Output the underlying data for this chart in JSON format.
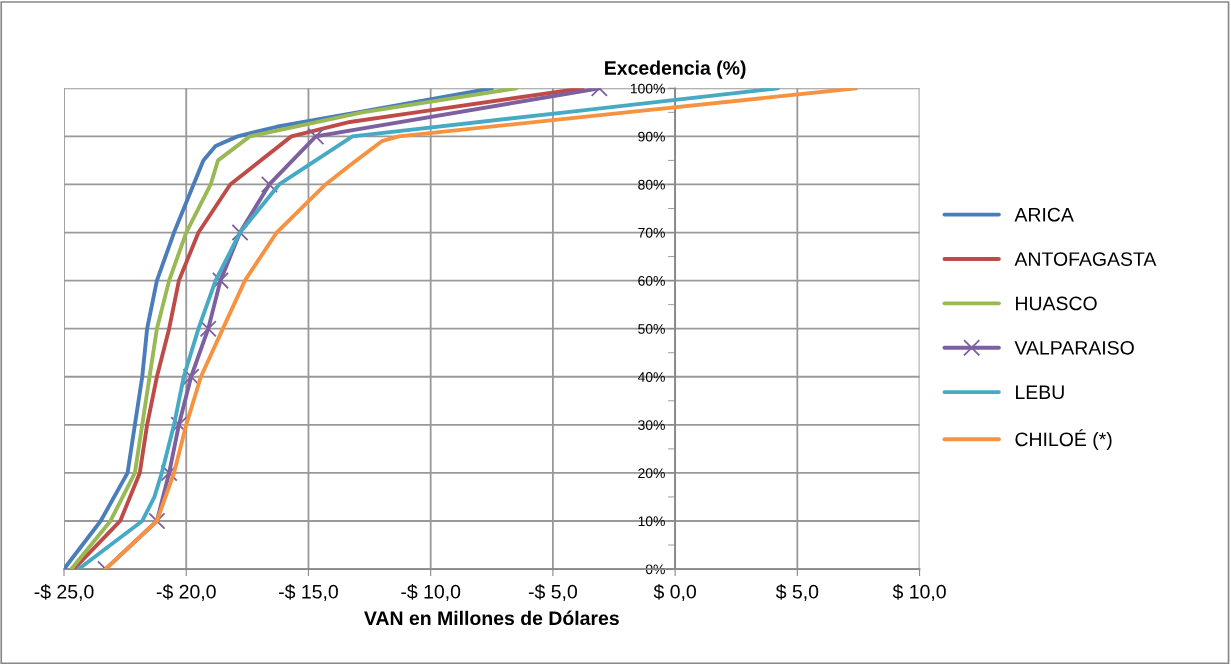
{
  "chart_data": {
    "type": "line",
    "ylabel": "Excedencia (%)",
    "xlabel": "VAN en Millones de Dólares",
    "xlim": [
      -25,
      10
    ],
    "ylim": [
      0,
      100
    ],
    "xticks": [
      {
        "value": -25,
        "label": "-$ 25,0"
      },
      {
        "value": -20,
        "label": "-$ 20,0"
      },
      {
        "value": -15,
        "label": "-$ 15,0"
      },
      {
        "value": -10,
        "label": "-$ 10,0"
      },
      {
        "value": -5,
        "label": "-$ 5,0"
      },
      {
        "value": 0,
        "label": "$ 0,0"
      },
      {
        "value": 5,
        "label": "$ 5,0"
      },
      {
        "value": 10,
        "label": "$ 10,0"
      }
    ],
    "yticks": [
      {
        "value": 0,
        "label": "0%"
      },
      {
        "value": 10,
        "label": "10%"
      },
      {
        "value": 20,
        "label": "20%"
      },
      {
        "value": 30,
        "label": "30%"
      },
      {
        "value": 40,
        "label": "40%"
      },
      {
        "value": 50,
        "label": "50%"
      },
      {
        "value": 60,
        "label": "60%"
      },
      {
        "value": 70,
        "label": "70%"
      },
      {
        "value": 80,
        "label": "80%"
      },
      {
        "value": 90,
        "label": "90%"
      },
      {
        "value": 100,
        "label": "100%"
      }
    ],
    "grid": true,
    "legend": "right",
    "marker": "none",
    "line_style": "solid",
    "series": [
      {
        "name": "ARICA",
        "color": "#4a7ebb",
        "x": [
          -25.0,
          -23.5,
          -22.4,
          -22.1,
          -21.8,
          -21.6,
          -21.2,
          -20.5,
          -19.7,
          -19.3,
          -18.8,
          -17.9,
          -16.3,
          -13.0,
          -7.5
        ],
        "values": [
          0,
          10,
          20,
          30,
          40,
          50,
          60,
          70,
          80,
          85,
          88,
          90,
          92,
          95,
          100
        ]
      },
      {
        "name": "ANTOFAGASTA",
        "color": "#be4b48",
        "x": [
          -24.6,
          -22.7,
          -21.9,
          -21.6,
          -21.2,
          -20.7,
          -20.3,
          -19.5,
          -18.2,
          -15.7,
          -13.3,
          -10.6,
          -3.8
        ],
        "values": [
          0,
          10,
          20,
          30,
          40,
          50,
          60,
          70,
          80,
          90,
          93,
          95,
          100
        ]
      },
      {
        "name": "HUASCO",
        "color": "#98b954",
        "x": [
          -24.7,
          -23.1,
          -22.1,
          -21.8,
          -21.5,
          -21.2,
          -20.7,
          -20.0,
          -19.0,
          -18.7,
          -17.4,
          -12.8,
          -6.5
        ],
        "values": [
          0,
          10,
          20,
          30,
          40,
          50,
          60,
          70,
          80,
          85,
          90,
          95,
          100
        ]
      },
      {
        "name": "VALPARAISO",
        "color": "#7d60a0",
        "marker": "cross",
        "x": [
          -23.3,
          -21.2,
          -20.7,
          -20.3,
          -19.8,
          -19.1,
          -18.6,
          -17.8,
          -16.6,
          -14.7,
          -3.1
        ],
        "values": [
          0,
          10,
          20,
          30,
          40,
          50,
          60,
          70,
          80,
          90,
          100
        ]
      },
      {
        "name": "LEBU",
        "color": "#46aac5",
        "x": [
          -24.4,
          -23.1,
          -21.8,
          -21.3,
          -21.0,
          -20.5,
          -20.1,
          -19.5,
          -18.8,
          -17.8,
          -16.2,
          -13.2,
          -4.5,
          4.2
        ],
        "values": [
          0,
          5,
          10,
          15,
          20,
          30,
          40,
          50,
          60,
          70,
          80,
          90,
          95,
          100
        ]
      },
      {
        "name": "CHILOÉ (*)",
        "color": "#f69240",
        "x": [
          -23.3,
          -21.2,
          -20.5,
          -20.0,
          -19.4,
          -18.5,
          -17.6,
          -16.3,
          -14.3,
          -13.3,
          -12.0,
          -11.3,
          -2.0,
          7.4
        ],
        "values": [
          0,
          10,
          20,
          30,
          40,
          50,
          60,
          70,
          80,
          84,
          89,
          90,
          95,
          100
        ]
      }
    ]
  }
}
